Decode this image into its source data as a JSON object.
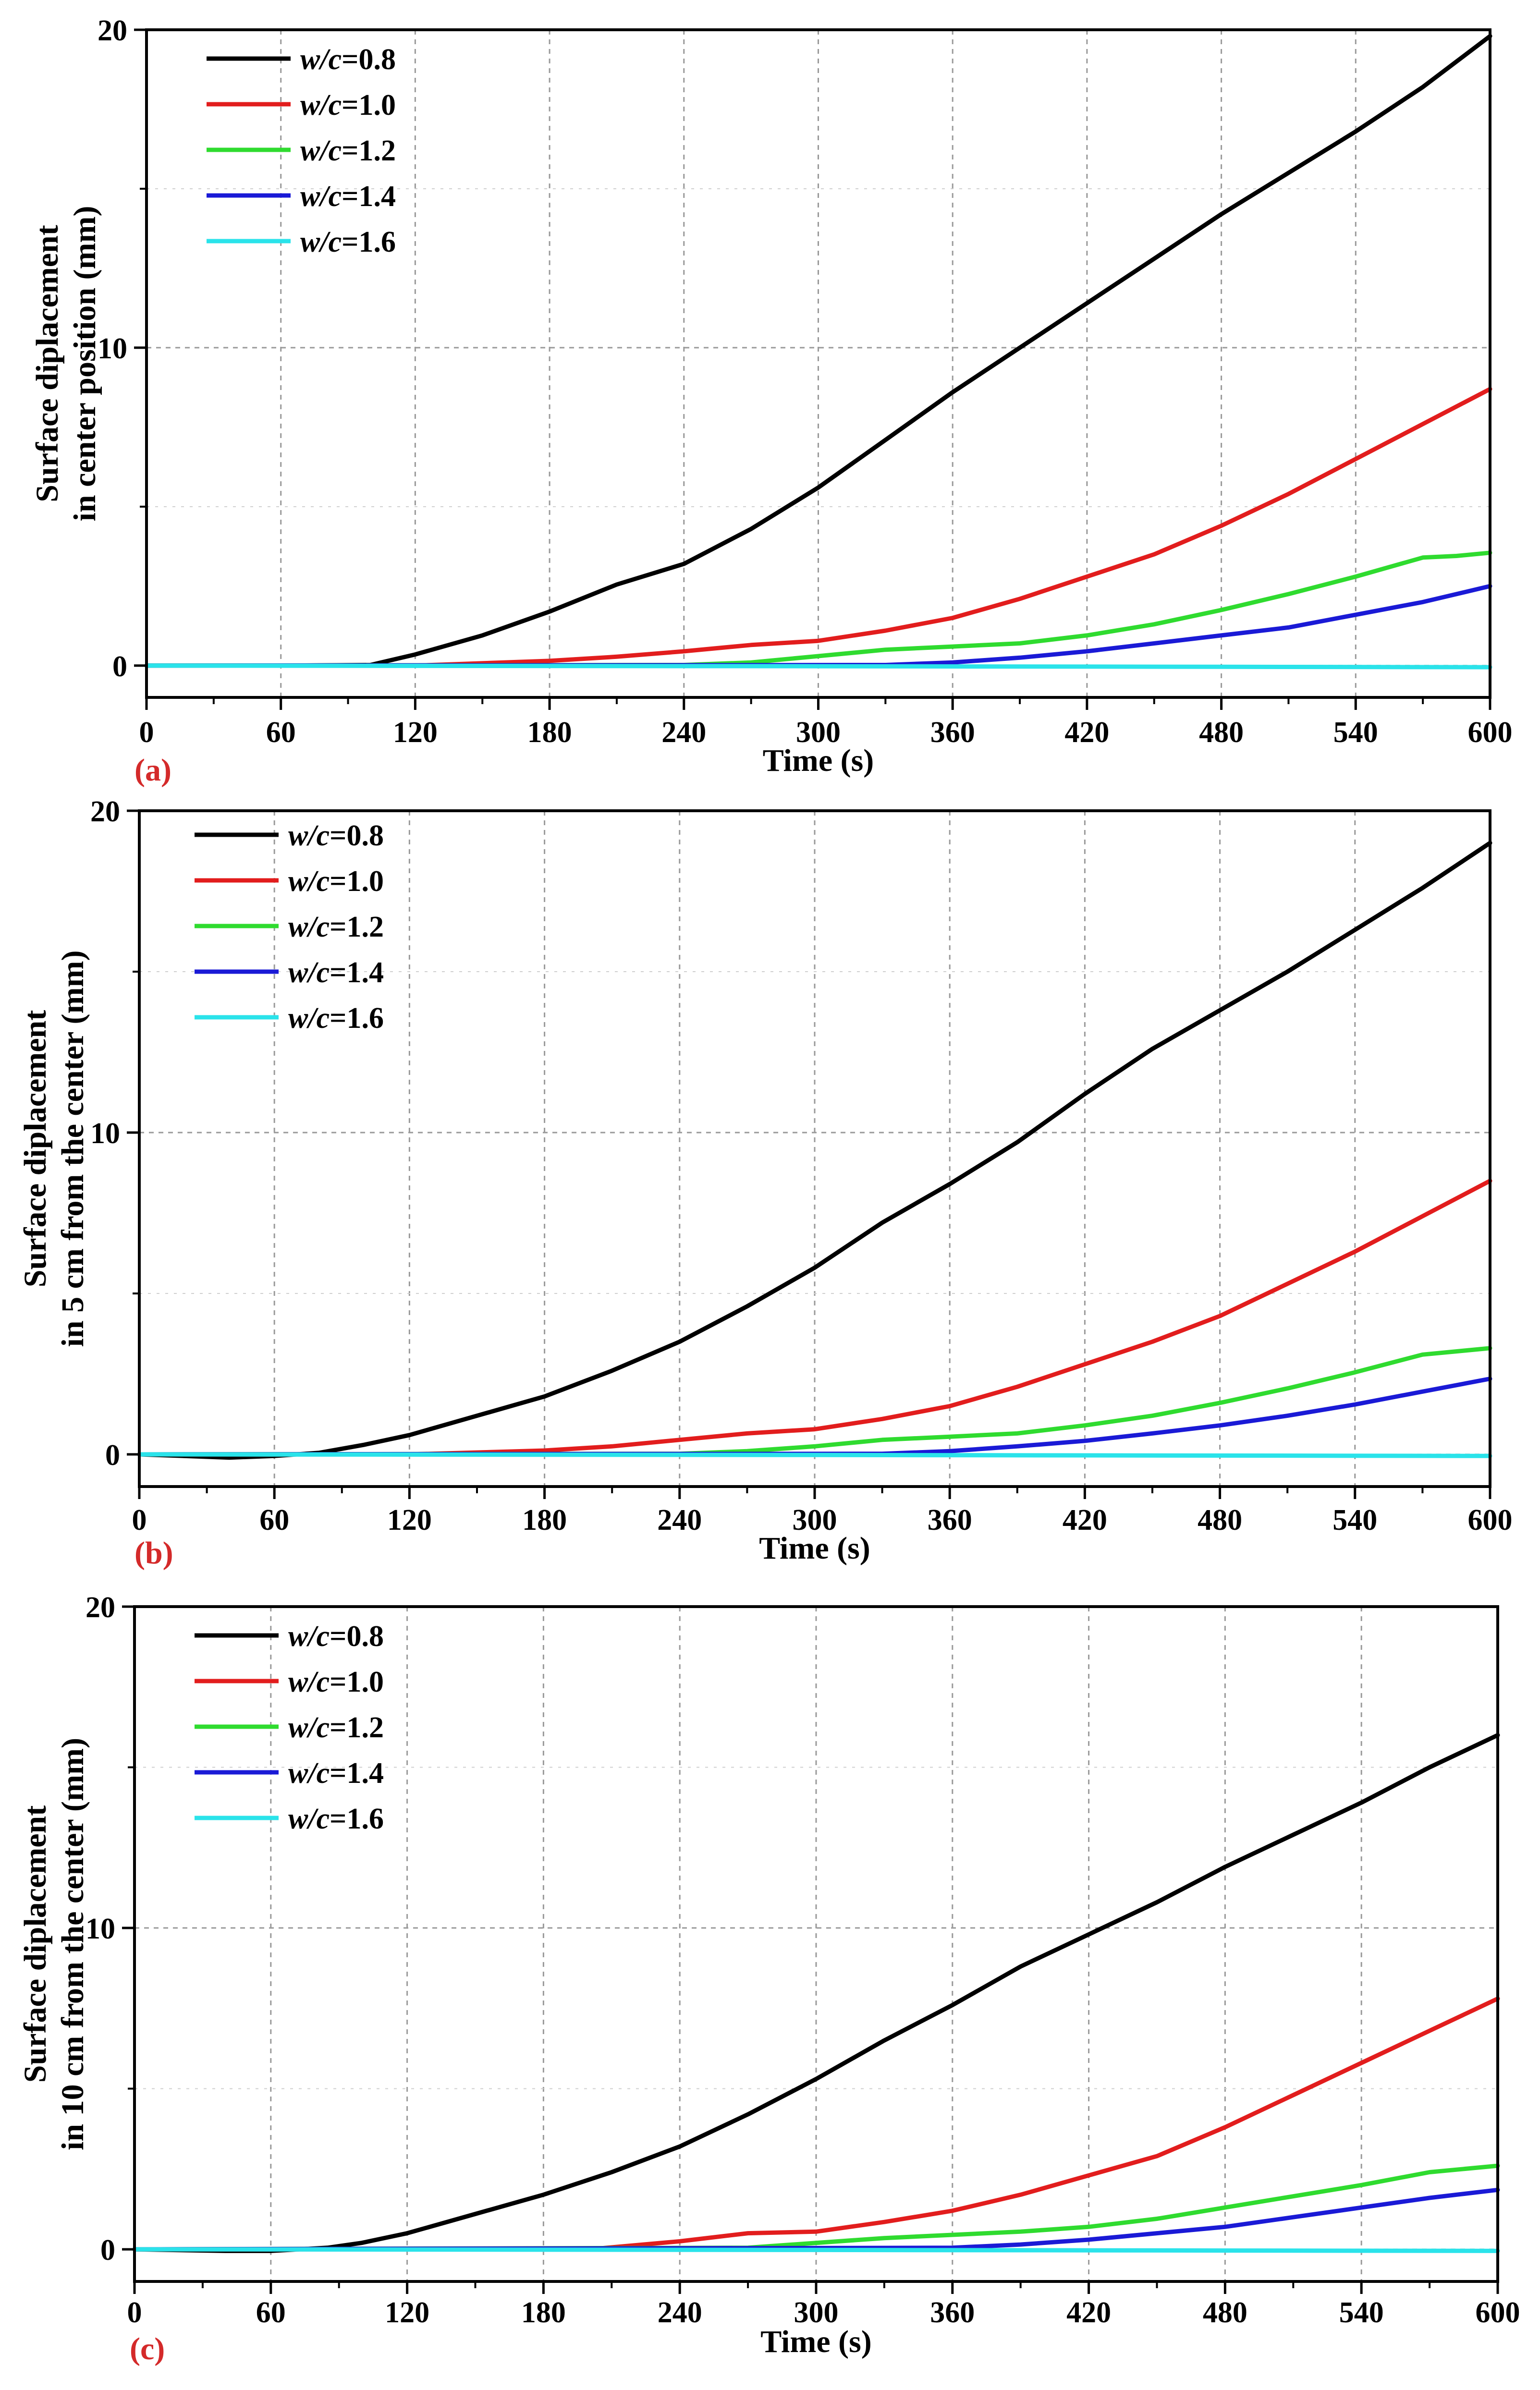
{
  "chart_data": [
    {
      "type": "line",
      "panel_label": "(a)",
      "title": "",
      "xlabel": "Time (s)",
      "ylabel_lines": [
        "Surface diplacement",
        "in center position (mm)"
      ],
      "xlim": [
        0,
        600
      ],
      "ylim": [
        -1,
        20
      ],
      "xticks": [
        0,
        60,
        120,
        180,
        240,
        300,
        360,
        420,
        480,
        540,
        600
      ],
      "yticks": [
        0,
        10,
        20
      ],
      "xtick_labels": [
        "0",
        "60",
        "120",
        "180",
        "240",
        "300",
        "360",
        "420",
        "480",
        "540",
        "600"
      ],
      "ytick_labels": [
        "0",
        "10",
        "20"
      ],
      "grid": true,
      "legend_position": "top-left",
      "series": [
        {
          "name": "w/c=0.8",
          "label_var": "w/c",
          "label_val": "=0.8",
          "color": "#000000",
          "x": [
            0,
            60,
            100,
            120,
            150,
            180,
            210,
            240,
            270,
            300,
            330,
            360,
            390,
            420,
            450,
            480,
            510,
            540,
            570,
            600
          ],
          "y": [
            0,
            0,
            0.02,
            0.35,
            0.95,
            1.7,
            2.55,
            3.2,
            4.3,
            5.6,
            7.1,
            8.6,
            10.0,
            11.4,
            12.8,
            14.2,
            15.5,
            16.8,
            18.2,
            19.8
          ]
        },
        {
          "name": "w/c=1.0",
          "label_var": "w/c",
          "label_val": "=1.0",
          "color": "#e21d1d",
          "x": [
            0,
            120,
            180,
            210,
            240,
            270,
            300,
            330,
            360,
            390,
            420,
            450,
            480,
            510,
            540,
            570,
            600
          ],
          "y": [
            0,
            0,
            0.15,
            0.28,
            0.45,
            0.65,
            0.78,
            1.1,
            1.5,
            2.1,
            2.8,
            3.5,
            4.4,
            5.4,
            6.5,
            7.6,
            8.7
          ]
        },
        {
          "name": "w/c=1.2",
          "label_var": "w/c",
          "label_val": "=1.2",
          "color": "#2fdb2f",
          "x": [
            0,
            240,
            270,
            300,
            330,
            360,
            390,
            420,
            450,
            480,
            510,
            540,
            570,
            585,
            600
          ],
          "y": [
            0,
            0.02,
            0.1,
            0.3,
            0.5,
            0.6,
            0.7,
            0.95,
            1.3,
            1.75,
            2.25,
            2.8,
            3.4,
            3.45,
            3.55
          ]
        },
        {
          "name": "w/c=1.4",
          "label_var": "w/c",
          "label_val": "=1.4",
          "color": "#1a1ad6",
          "x": [
            0,
            330,
            360,
            390,
            420,
            450,
            480,
            510,
            540,
            570,
            600
          ],
          "y": [
            0,
            0.02,
            0.1,
            0.25,
            0.45,
            0.7,
            0.95,
            1.2,
            1.6,
            2.0,
            2.5
          ]
        },
        {
          "name": "w/c=1.6",
          "label_var": "w/c",
          "label_val": "=1.6",
          "color": "#2ae3ea",
          "x": [
            0,
            300,
            600
          ],
          "y": [
            0,
            -0.02,
            -0.05
          ]
        }
      ]
    },
    {
      "type": "line",
      "panel_label": "(b)",
      "title": "",
      "xlabel": "Time (s)",
      "ylabel_lines": [
        "Surface diplacement",
        "in 5 cm from the center (mm)"
      ],
      "xlim": [
        0,
        600
      ],
      "ylim": [
        -1,
        20
      ],
      "xticks": [
        0,
        60,
        120,
        180,
        240,
        300,
        360,
        420,
        480,
        540,
        600
      ],
      "yticks": [
        0,
        10,
        20
      ],
      "xtick_labels": [
        "0",
        "60",
        "120",
        "180",
        "240",
        "300",
        "360",
        "420",
        "480",
        "540",
        "600"
      ],
      "ytick_labels": [
        "0",
        "10",
        "20"
      ],
      "grid": true,
      "legend_position": "top-left",
      "series": [
        {
          "name": "w/c=0.8",
          "label_var": "w/c",
          "label_val": "=0.8",
          "color": "#000000",
          "x": [
            0,
            40,
            60,
            80,
            100,
            120,
            150,
            180,
            210,
            240,
            270,
            300,
            330,
            360,
            390,
            420,
            450,
            480,
            510,
            540,
            570,
            600
          ],
          "y": [
            0,
            -0.1,
            -0.05,
            0.05,
            0.3,
            0.6,
            1.2,
            1.8,
            2.6,
            3.5,
            4.6,
            5.8,
            7.2,
            8.4,
            9.7,
            11.2,
            12.6,
            13.8,
            15.0,
            16.3,
            17.6,
            19.0
          ]
        },
        {
          "name": "w/c=1.0",
          "label_var": "w/c",
          "label_val": "=1.0",
          "color": "#e21d1d",
          "x": [
            0,
            120,
            180,
            210,
            240,
            270,
            300,
            330,
            360,
            390,
            420,
            450,
            480,
            510,
            540,
            570,
            600
          ],
          "y": [
            0,
            0,
            0.12,
            0.25,
            0.45,
            0.65,
            0.78,
            1.1,
            1.5,
            2.1,
            2.8,
            3.5,
            4.3,
            5.3,
            6.3,
            7.4,
            8.5
          ]
        },
        {
          "name": "w/c=1.2",
          "label_var": "w/c",
          "label_val": "=1.2",
          "color": "#2fdb2f",
          "x": [
            0,
            240,
            270,
            300,
            330,
            360,
            390,
            420,
            450,
            480,
            510,
            540,
            570,
            585,
            600
          ],
          "y": [
            0,
            0.02,
            0.1,
            0.25,
            0.45,
            0.55,
            0.65,
            0.9,
            1.2,
            1.6,
            2.05,
            2.55,
            3.1,
            3.2,
            3.3
          ]
        },
        {
          "name": "w/c=1.4",
          "label_var": "w/c",
          "label_val": "=1.4",
          "color": "#1a1ad6",
          "x": [
            0,
            330,
            360,
            390,
            420,
            450,
            480,
            510,
            540,
            570,
            600
          ],
          "y": [
            0,
            0.02,
            0.1,
            0.25,
            0.42,
            0.65,
            0.9,
            1.2,
            1.55,
            1.95,
            2.35
          ]
        },
        {
          "name": "w/c=1.6",
          "label_var": "w/c",
          "label_val": "=1.6",
          "color": "#2ae3ea",
          "x": [
            0,
            300,
            600
          ],
          "y": [
            0,
            -0.02,
            -0.05
          ]
        }
      ]
    },
    {
      "type": "line",
      "panel_label": "(c)",
      "title": "",
      "xlabel": "Time (s)",
      "ylabel_lines": [
        "Surface diplacement",
        "in 10 cm from the center (mm)"
      ],
      "xlim": [
        0,
        600
      ],
      "ylim": [
        -1,
        20
      ],
      "xticks": [
        0,
        60,
        120,
        180,
        240,
        300,
        360,
        420,
        480,
        540,
        600
      ],
      "yticks": [
        0,
        10,
        20
      ],
      "xtick_labels": [
        "0",
        "60",
        "120",
        "180",
        "240",
        "300",
        "360",
        "420",
        "480",
        "540",
        "600"
      ],
      "ytick_labels": [
        "0",
        "10",
        "20"
      ],
      "grid": true,
      "legend_position": "top-left",
      "series": [
        {
          "name": "w/c=0.8",
          "label_var": "w/c",
          "label_val": "=0.8",
          "color": "#000000",
          "x": [
            0,
            40,
            60,
            85,
            100,
            120,
            150,
            180,
            210,
            240,
            270,
            300,
            330,
            360,
            390,
            420,
            450,
            480,
            510,
            540,
            570,
            600
          ],
          "y": [
            0,
            -0.05,
            -0.05,
            0.05,
            0.2,
            0.5,
            1.1,
            1.7,
            2.4,
            3.2,
            4.2,
            5.3,
            6.5,
            7.6,
            8.8,
            9.8,
            10.8,
            11.9,
            12.9,
            13.9,
            15.0,
            16.0
          ]
        },
        {
          "name": "w/c=1.0",
          "label_var": "w/c",
          "label_val": "=1.0",
          "color": "#e21d1d",
          "x": [
            0,
            200,
            240,
            270,
            300,
            330,
            360,
            390,
            420,
            450,
            480,
            510,
            540,
            570,
            600
          ],
          "y": [
            0,
            0,
            0.25,
            0.5,
            0.55,
            0.85,
            1.2,
            1.7,
            2.3,
            2.9,
            3.8,
            4.8,
            5.8,
            6.8,
            7.8
          ]
        },
        {
          "name": "w/c=1.2",
          "label_var": "w/c",
          "label_val": "=1.2",
          "color": "#2fdb2f",
          "x": [
            0,
            270,
            300,
            330,
            360,
            390,
            420,
            450,
            480,
            510,
            540,
            570,
            585,
            600
          ],
          "y": [
            0,
            0.05,
            0.2,
            0.35,
            0.45,
            0.55,
            0.7,
            0.95,
            1.3,
            1.65,
            2.0,
            2.4,
            2.5,
            2.6
          ]
        },
        {
          "name": "w/c=1.4",
          "label_var": "w/c",
          "label_val": "=1.4",
          "color": "#1a1ad6",
          "x": [
            0,
            360,
            390,
            420,
            450,
            480,
            510,
            540,
            570,
            600
          ],
          "y": [
            0,
            0.05,
            0.15,
            0.3,
            0.5,
            0.7,
            1.0,
            1.3,
            1.6,
            1.85
          ]
        },
        {
          "name": "w/c=1.6",
          "label_var": "w/c",
          "label_val": "=1.6",
          "color": "#2ae3ea",
          "x": [
            0,
            300,
            600
          ],
          "y": [
            0,
            -0.02,
            -0.05
          ]
        }
      ]
    }
  ]
}
